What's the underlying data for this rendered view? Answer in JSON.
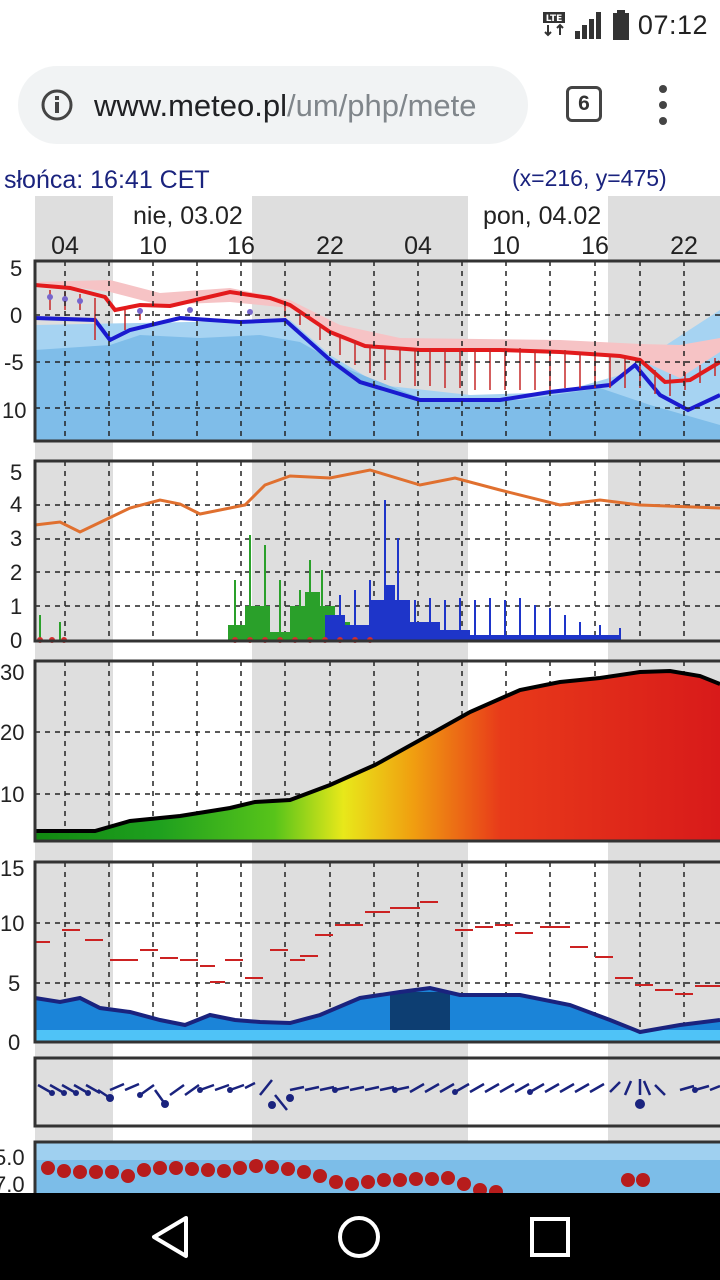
{
  "status_bar": {
    "network": "LTE",
    "time": "07:12",
    "icons": [
      "lte-icon",
      "signal-icon",
      "battery-icon"
    ]
  },
  "browser": {
    "url_host": "www.meteo.pl",
    "url_path": "/um/php/mete",
    "tab_count": "6",
    "icons": [
      "info-icon",
      "menu-icon"
    ]
  },
  "meteogram": {
    "header_left": "słońca: 16:41 CET",
    "header_right": "(x=216,  y=475)",
    "day_labels": [
      "nie, 03.02",
      "pon, 04.02"
    ],
    "hour_labels": [
      "04",
      "10",
      "16",
      "22",
      "04",
      "10",
      "16",
      "22"
    ],
    "panel_temp_ticks": [
      "5",
      "0",
      "-5",
      "10"
    ],
    "panel_precip_ticks": [
      "5",
      "4",
      "3",
      "2",
      "1",
      "0"
    ],
    "panel_cloud_ticks": [
      "30",
      "20",
      "10"
    ],
    "panel_wind_ticks": [
      "15",
      "10",
      "5",
      "0"
    ],
    "panel_pressure_ticks": [
      "5.0",
      "7.0"
    ],
    "colors": {
      "temp": "#e31a1c",
      "dew": "#1a1acf",
      "snow": "#e0702f",
      "cloud_edge": "#000000",
      "gust": "#cc2222"
    }
  },
  "nav": {
    "icons": [
      "back-icon",
      "home-icon",
      "recents-icon"
    ]
  }
}
